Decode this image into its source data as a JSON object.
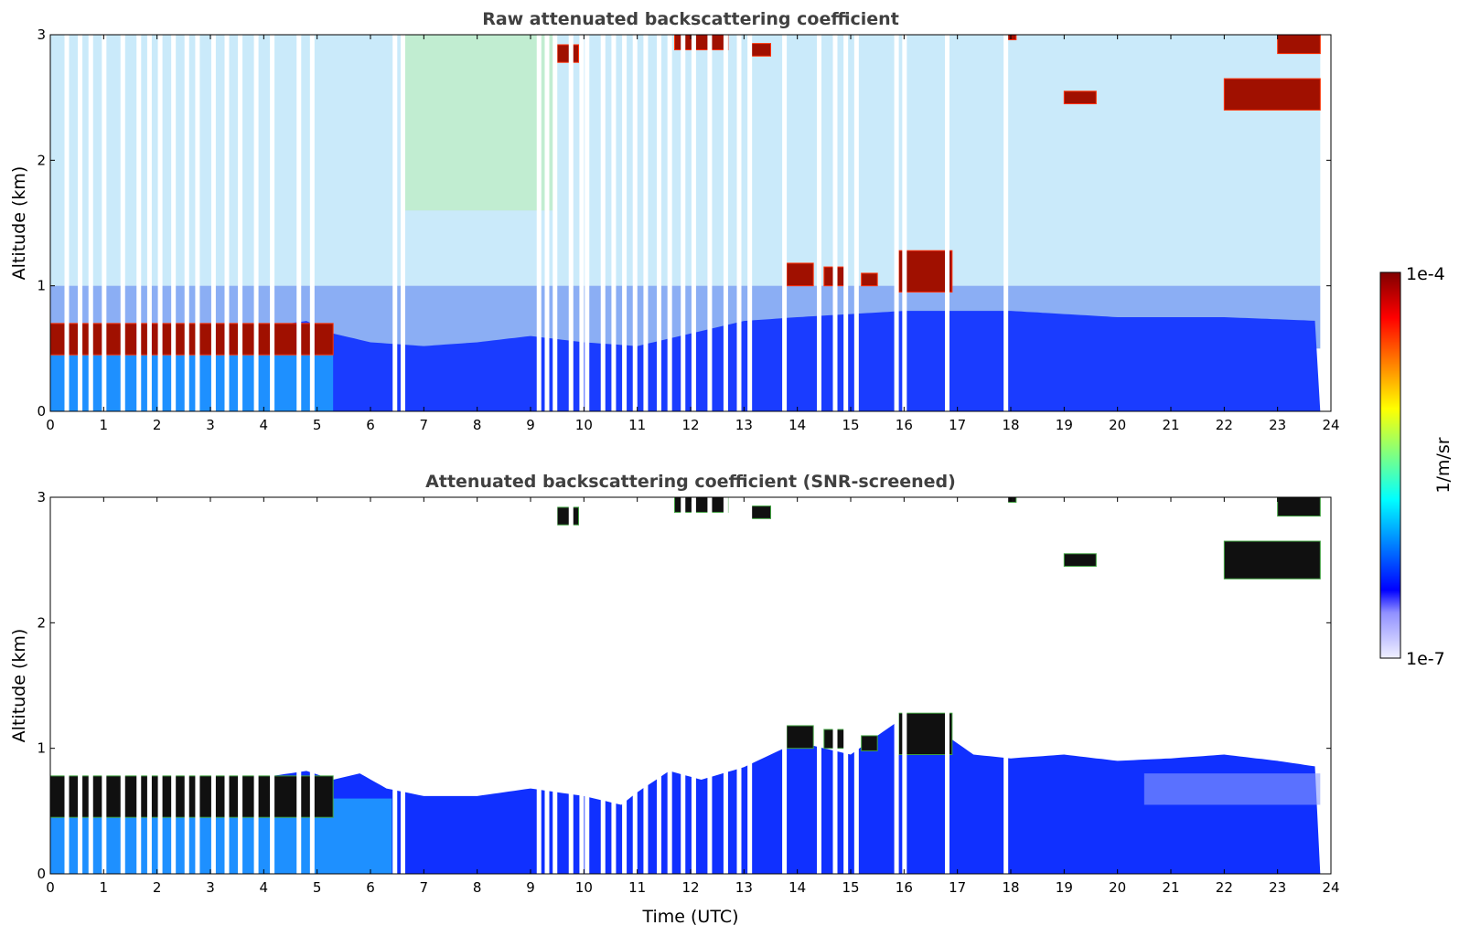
{
  "chart_data": [
    {
      "type": "heatmap",
      "title": "Raw attenuated backscattering coefficient",
      "xlabel": "",
      "ylabel": "Altitude (km)",
      "xlim": [
        0,
        24
      ],
      "ylim": [
        0,
        3
      ],
      "xticks": [
        0,
        1,
        2,
        3,
        4,
        5,
        6,
        7,
        8,
        9,
        10,
        11,
        12,
        13,
        14,
        15,
        16,
        17,
        18,
        19,
        20,
        21,
        22,
        23,
        24
      ],
      "yticks": [
        0,
        1,
        2,
        3
      ],
      "colorscale": "jet",
      "boundary_layer_top_km": [
        [
          0.0,
          0.55
        ],
        [
          1.0,
          0.5
        ],
        [
          2.0,
          0.62
        ],
        [
          3.0,
          0.65
        ],
        [
          4.0,
          0.67
        ],
        [
          4.8,
          0.72
        ],
        [
          5.3,
          0.62
        ],
        [
          6.0,
          0.55
        ],
        [
          7.0,
          0.52
        ],
        [
          8.0,
          0.55
        ],
        [
          9.0,
          0.6
        ],
        [
          10.0,
          0.55
        ],
        [
          11.0,
          0.52
        ],
        [
          12.0,
          0.62
        ],
        [
          13.0,
          0.72
        ],
        [
          14.0,
          0.75
        ],
        [
          16.0,
          0.8
        ],
        [
          18.0,
          0.8
        ],
        [
          20.0,
          0.75
        ],
        [
          22.0,
          0.75
        ],
        [
          23.8,
          0.72
        ]
      ],
      "cloud_layers": [
        {
          "t0": 0.0,
          "t1": 5.3,
          "z0": 0.45,
          "z1": 0.7
        },
        {
          "t0": 9.5,
          "t1": 9.9,
          "z0": 2.78,
          "z1": 2.92
        },
        {
          "t0": 11.7,
          "t1": 12.7,
          "z0": 2.88,
          "z1": 3.0
        },
        {
          "t0": 13.1,
          "t1": 13.5,
          "z0": 2.83,
          "z1": 2.93
        },
        {
          "t0": 13.8,
          "t1": 14.3,
          "z0": 1.0,
          "z1": 1.18
        },
        {
          "t0": 14.5,
          "t1": 14.9,
          "z0": 1.0,
          "z1": 1.15
        },
        {
          "t0": 15.2,
          "t1": 15.5,
          "z0": 1.0,
          "z1": 1.1
        },
        {
          "t0": 15.9,
          "t1": 16.9,
          "z0": 0.95,
          "z1": 1.28
        },
        {
          "t0": 19.0,
          "t1": 19.6,
          "z0": 2.45,
          "z1": 2.55
        },
        {
          "t0": 22.0,
          "t1": 23.8,
          "z0": 2.4,
          "z1": 2.65
        },
        {
          "t0": 23.0,
          "t1": 23.8,
          "z0": 2.85,
          "z1": 3.0
        },
        {
          "t0": 17.9,
          "t1": 18.1,
          "z0": 2.96,
          "z1": 3.0
        }
      ],
      "data_gaps_utc": [
        0.3,
        0.55,
        0.75,
        1.0,
        1.35,
        1.65,
        1.85,
        2.05,
        2.3,
        2.55,
        2.75,
        3.05,
        3.3,
        3.55,
        3.85,
        4.15,
        4.65,
        4.9,
        6.45,
        6.6,
        9.15,
        9.3,
        9.45,
        9.75,
        9.95,
        10.05,
        10.35,
        10.55,
        10.75,
        10.95,
        11.15,
        11.4,
        11.6,
        11.85,
        12.05,
        12.35,
        12.65,
        12.9,
        13.1,
        13.75,
        14.4,
        14.7,
        14.9,
        15.1,
        15.85,
        16.0,
        16.8,
        17.9
      ]
    },
    {
      "type": "heatmap",
      "title": "Attenuated backscattering coefficient (SNR-screened)",
      "xlabel": "Time (UTC)",
      "ylabel": "Altitude (km)",
      "xlim": [
        0,
        24
      ],
      "ylim": [
        0,
        3
      ],
      "xticks": [
        0,
        1,
        2,
        3,
        4,
        5,
        6,
        7,
        8,
        9,
        10,
        11,
        12,
        13,
        14,
        15,
        16,
        17,
        18,
        19,
        20,
        21,
        22,
        23,
        24
      ],
      "yticks": [
        0,
        1,
        2,
        3
      ],
      "colorscale": "jet",
      "screened_top_km": [
        [
          0.0,
          0.62
        ],
        [
          1.0,
          0.6
        ],
        [
          2.0,
          0.7
        ],
        [
          3.0,
          0.73
        ],
        [
          4.0,
          0.77
        ],
        [
          4.8,
          0.82
        ],
        [
          5.3,
          0.75
        ],
        [
          5.8,
          0.8
        ],
        [
          6.3,
          0.68
        ],
        [
          7.0,
          0.62
        ],
        [
          8.0,
          0.62
        ],
        [
          9.0,
          0.68
        ],
        [
          10.0,
          0.62
        ],
        [
          10.7,
          0.55
        ],
        [
          11.0,
          0.65
        ],
        [
          11.6,
          0.82
        ],
        [
          12.2,
          0.75
        ],
        [
          13.0,
          0.85
        ],
        [
          13.5,
          0.95
        ],
        [
          14.0,
          1.05
        ],
        [
          15.0,
          0.95
        ],
        [
          16.0,
          1.25
        ],
        [
          16.8,
          1.1
        ],
        [
          17.3,
          0.95
        ],
        [
          18.0,
          0.92
        ],
        [
          19.0,
          0.95
        ],
        [
          20.0,
          0.9
        ],
        [
          21.0,
          0.92
        ],
        [
          22.0,
          0.95
        ],
        [
          23.0,
          0.9
        ],
        [
          23.8,
          0.85
        ]
      ],
      "cloud_layers": [
        {
          "t0": 0.0,
          "t1": 5.3,
          "z0": 0.45,
          "z1": 0.78
        },
        {
          "t0": 9.5,
          "t1": 9.9,
          "z0": 2.78,
          "z1": 2.92
        },
        {
          "t0": 11.7,
          "t1": 12.7,
          "z0": 2.88,
          "z1": 3.0
        },
        {
          "t0": 13.1,
          "t1": 13.5,
          "z0": 2.83,
          "z1": 2.93
        },
        {
          "t0": 13.8,
          "t1": 14.3,
          "z0": 1.0,
          "z1": 1.18
        },
        {
          "t0": 14.5,
          "t1": 14.9,
          "z0": 1.0,
          "z1": 1.15
        },
        {
          "t0": 15.2,
          "t1": 15.5,
          "z0": 0.98,
          "z1": 1.1
        },
        {
          "t0": 15.9,
          "t1": 16.9,
          "z0": 0.95,
          "z1": 1.28
        },
        {
          "t0": 19.0,
          "t1": 19.6,
          "z0": 2.45,
          "z1": 2.55
        },
        {
          "t0": 22.0,
          "t1": 23.8,
          "z0": 2.35,
          "z1": 2.65
        },
        {
          "t0": 23.0,
          "t1": 23.8,
          "z0": 2.85,
          "z1": 3.0
        },
        {
          "t0": 17.9,
          "t1": 18.1,
          "z0": 2.96,
          "z1": 3.0
        }
      ],
      "data_gaps_utc": [
        0.3,
        0.55,
        0.75,
        1.0,
        1.35,
        1.65,
        1.85,
        2.05,
        2.3,
        2.55,
        2.75,
        3.05,
        3.3,
        3.55,
        3.85,
        4.15,
        4.65,
        4.9,
        6.45,
        6.6,
        9.15,
        9.3,
        9.45,
        9.75,
        9.95,
        10.05,
        10.35,
        10.55,
        10.75,
        10.95,
        11.15,
        11.4,
        11.6,
        11.85,
        12.05,
        12.35,
        12.65,
        12.9,
        13.1,
        13.75,
        14.4,
        14.7,
        14.9,
        15.1,
        15.85,
        16.0,
        16.8,
        17.9
      ]
    }
  ],
  "colorbar": {
    "label": "1/m/sr",
    "max_label": "1e-4",
    "min_label": "1e-7",
    "colors": [
      "#f0f0ff",
      "#c0c0ff",
      "#9090ff",
      "#0000ff",
      "#0040ff",
      "#0080ff",
      "#00c0ff",
      "#00ffff",
      "#40ffc0",
      "#80ff80",
      "#c0ff40",
      "#ffff00",
      "#ffc000",
      "#ff8000",
      "#ff4000",
      "#ff0000",
      "#c00000",
      "#800000"
    ]
  }
}
